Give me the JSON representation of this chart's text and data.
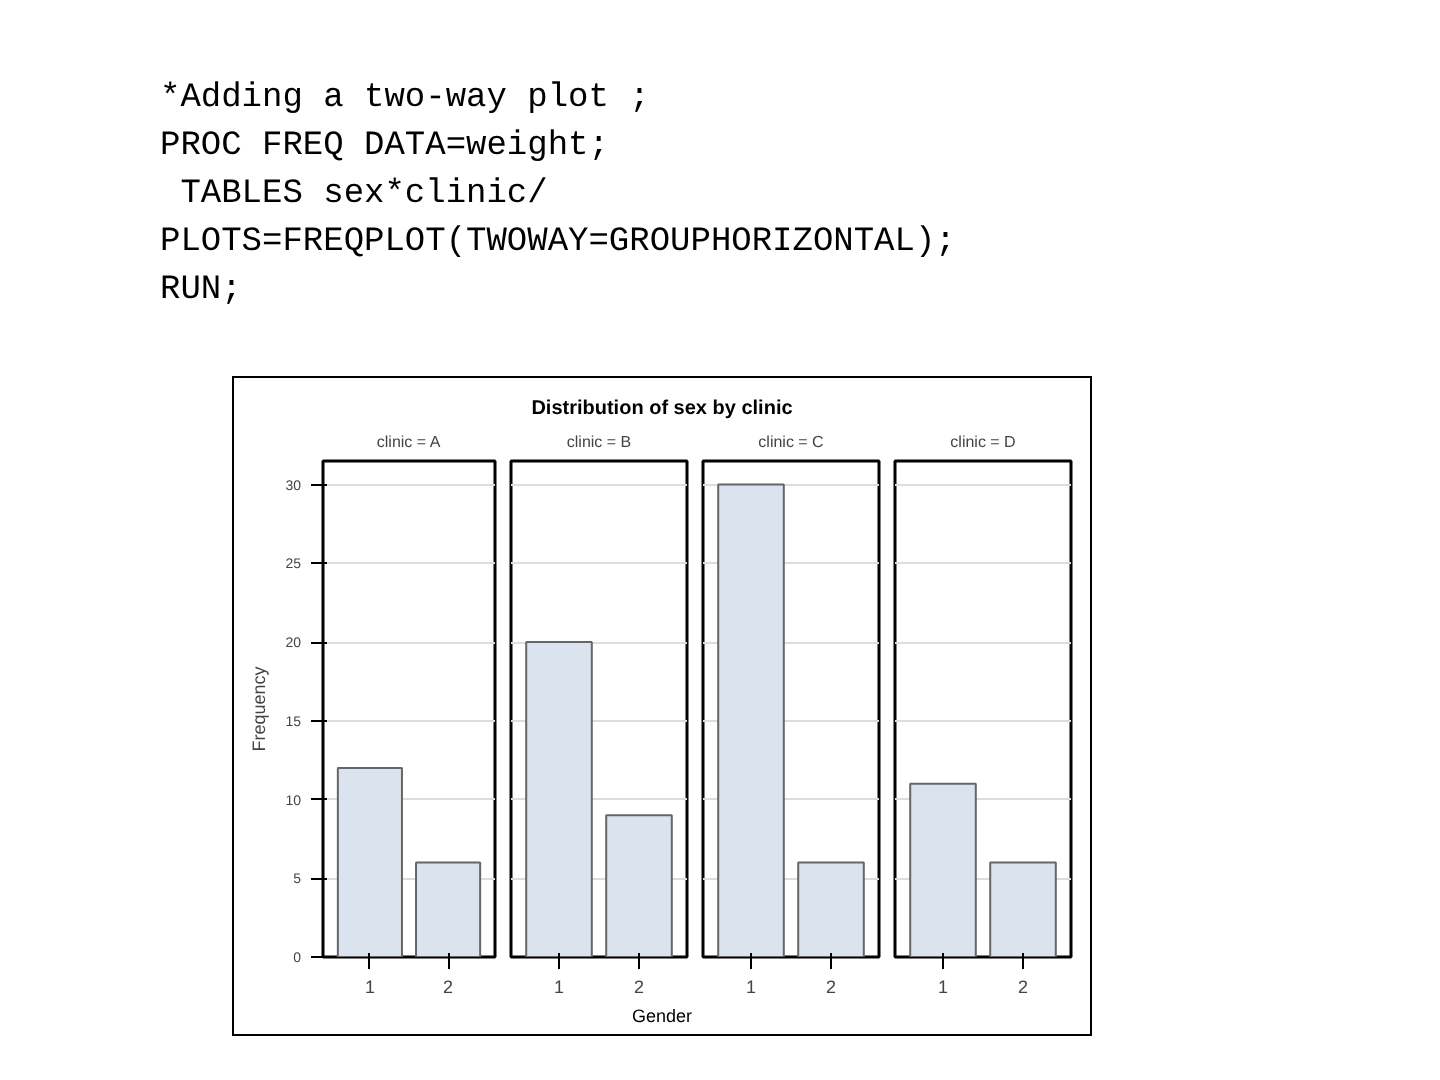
{
  "chart_data": [
    {
      "type": "bar",
      "subtitle": "clinic = A",
      "ylabel": "Frequency",
      "annotations": [
        "*Adding a two-way plot ;",
        "PROC FREQ DATA=weight;",
        " TABLES sex*clinic/",
        "PLOTS=FREQPLOT(TWOWAY=GROUPHORIZONTAL);",
        "RUN;"
      ],
      "categories": [
        "1",
        "2"
      ],
      "values": [
        12,
        6
      ],
      "color": "#dbe3ef",
      "ylim": [
        0,
        31.5
      ],
      "yticks": [
        0,
        5,
        10,
        15,
        20,
        25,
        30
      ],
      "grid": "y"
    },
    {
      "type": "bar",
      "title": "Distribution of sex by clinic",
      "subtitle": "clinic = B",
      "xlabel": "Gender",
      "categories": [
        "1",
        "2"
      ],
      "values": [
        20,
        9
      ],
      "color": "#dbe3ef",
      "ylim": [
        0,
        31.5
      ],
      "yticks": [
        0,
        5,
        10,
        15,
        20,
        25,
        30
      ],
      "grid": "y",
      "tick_labels": "x"
    },
    {
      "type": "bar",
      "subtitle": "clinic = C",
      "categories": [
        "1",
        "2"
      ],
      "values": [
        30,
        6
      ],
      "color": "#dbe3ef",
      "ylim": [
        0,
        31.5
      ],
      "yticks": [
        0,
        5,
        10,
        15,
        20,
        25,
        30
      ],
      "grid": "y",
      "tick_labels": "x"
    },
    {
      "type": "bar",
      "subtitle": "clinic = D",
      "categories": [
        "1",
        "2"
      ],
      "values": [
        11,
        6
      ],
      "color": "#dbe3ef",
      "ylim": [
        0,
        31.5
      ],
      "yticks": [
        0,
        5,
        10,
        15,
        20,
        25,
        30
      ],
      "grid": "y",
      "tick_labels": "x"
    }
  ]
}
